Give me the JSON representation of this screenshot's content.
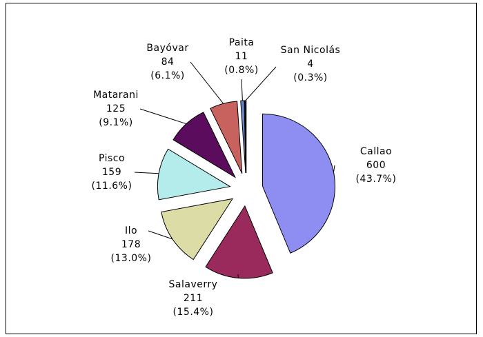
{
  "chart_data": {
    "type": "pie",
    "categories": [
      "Callao",
      "Salaverry",
      "Ilo",
      "Pisco",
      "Matarani",
      "Bayóvar",
      "Paita",
      "San Nicolás"
    ],
    "values": [
      600,
      211,
      178,
      159,
      125,
      84,
      11,
      4
    ],
    "percent_labels": [
      "(43.7%)",
      "(15.4%)",
      "(13.0%)",
      "(11.6%)",
      "(9.1%)",
      "(6.1%)",
      "(0.8%)",
      "(0.3%)"
    ],
    "colors": [
      "#8e8ef2",
      "#9a2a5c",
      "#dcdca6",
      "#b4ecec",
      "#5c0c5c",
      "#c8625e",
      "#6a86c8",
      "#12244f"
    ]
  }
}
